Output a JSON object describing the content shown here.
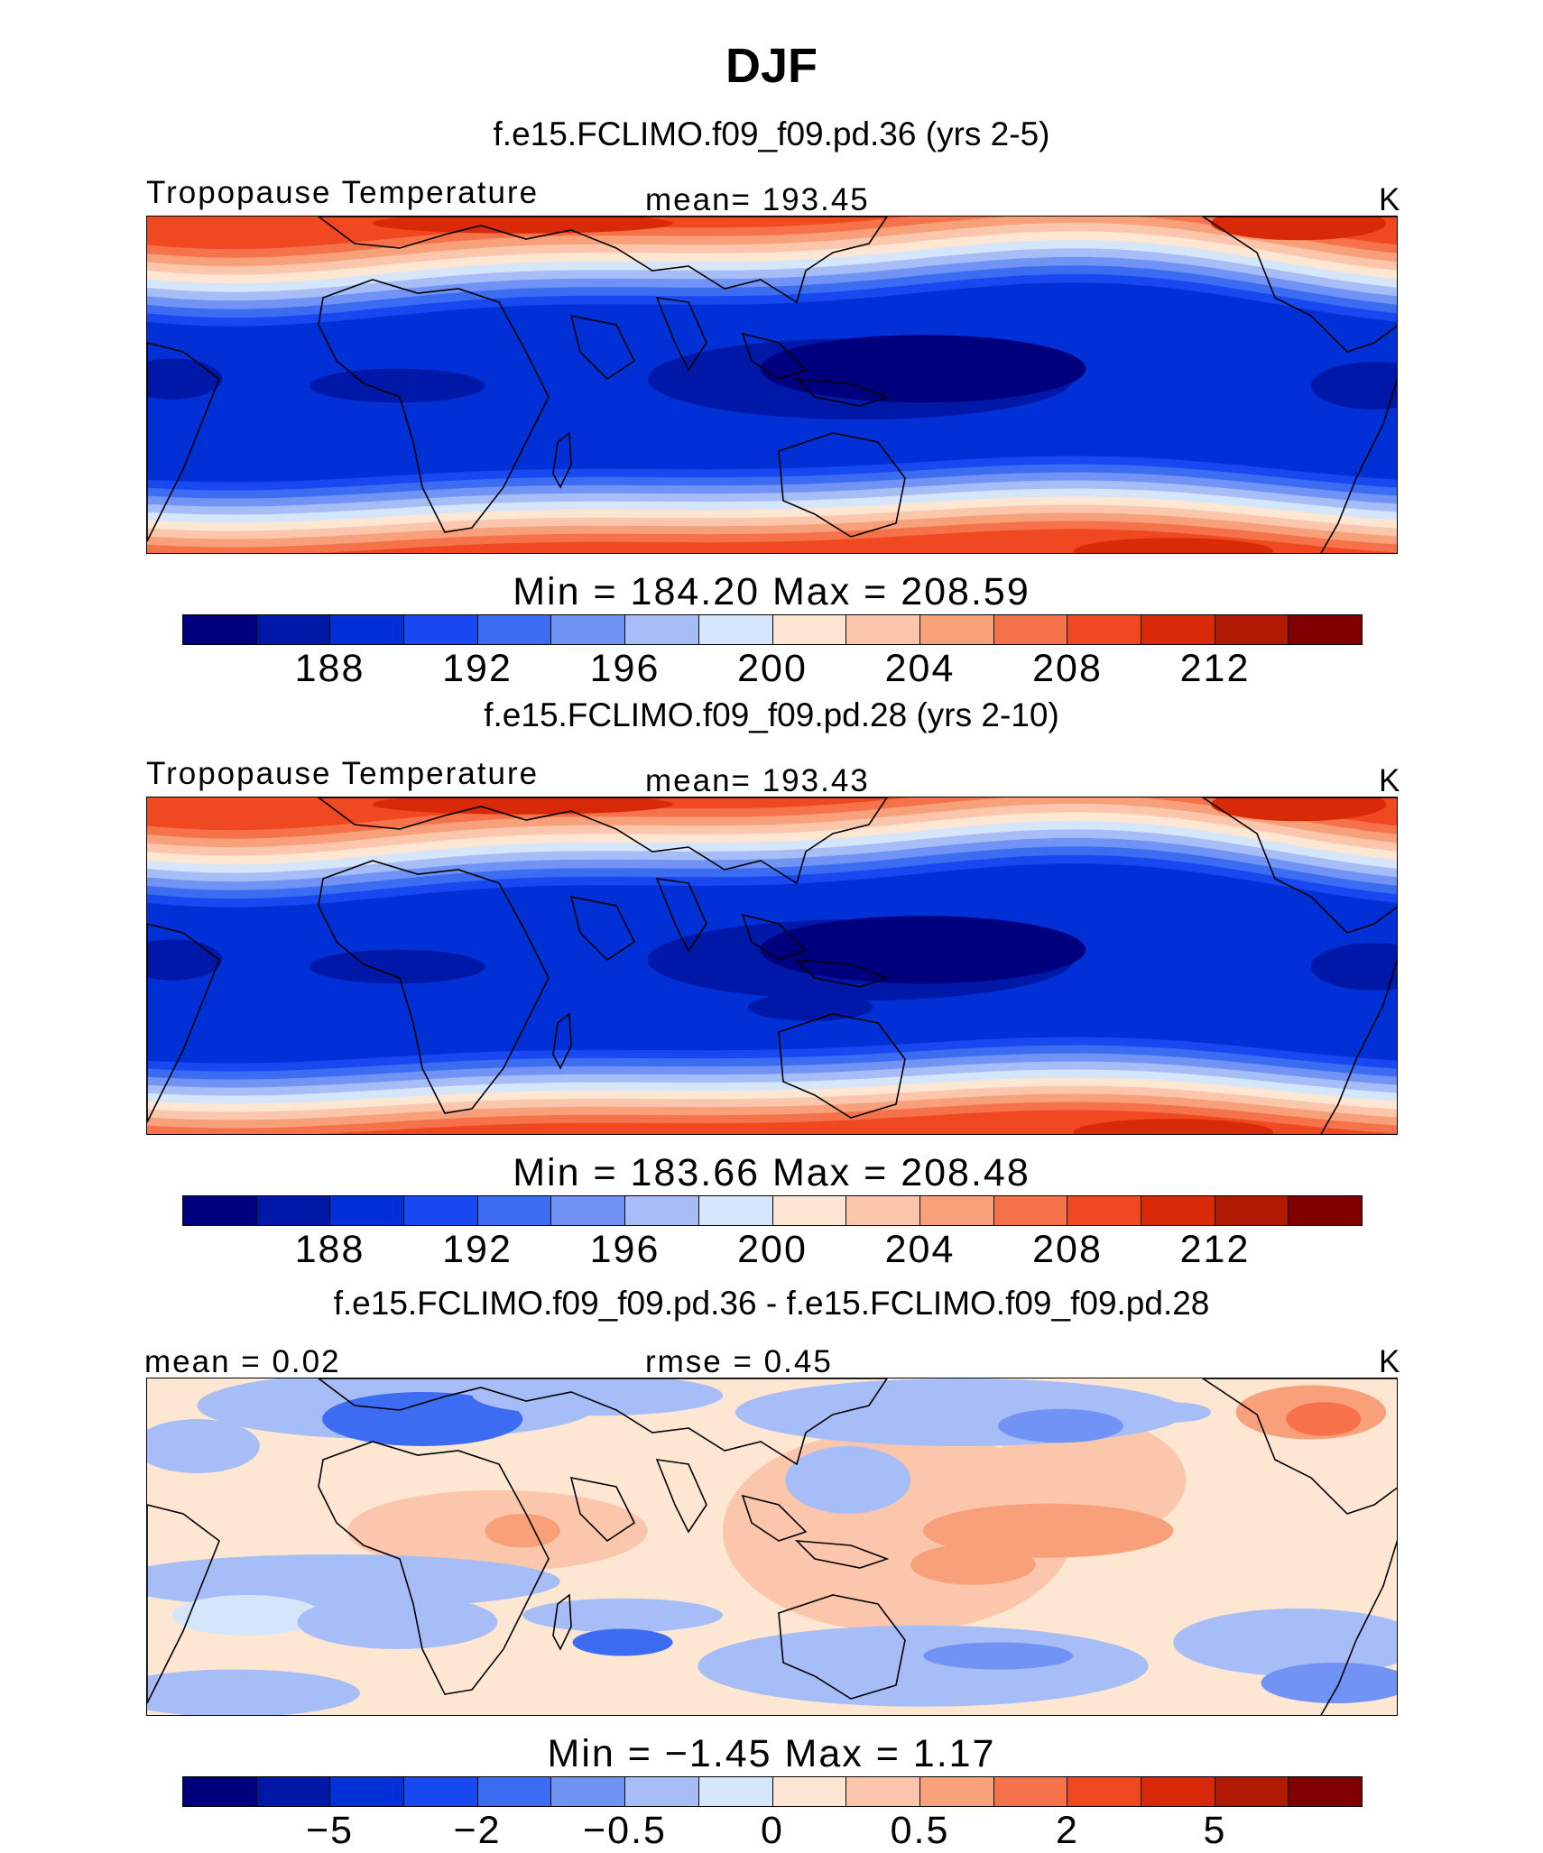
{
  "figure": {
    "title": "DJF"
  },
  "colormaps": {
    "absolute": [
      "#00007f",
      "#0018a8",
      "#0030d6",
      "#1848f0",
      "#3c6cf2",
      "#7093f5",
      "#a6bdf7",
      "#d6e6fa",
      "#fde6d2",
      "#fbc6ac",
      "#f7a07a",
      "#f5724a",
      "#f04820",
      "#d82a08",
      "#b01a00",
      "#800000"
    ],
    "difference": [
      "#00007f",
      "#0018a8",
      "#0030d6",
      "#1848f0",
      "#3c6cf2",
      "#7093f5",
      "#a6bdf7",
      "#d6e6fa",
      "#fde6d2",
      "#fbc6ac",
      "#f7a07a",
      "#f5724a",
      "#f04820",
      "#d82a08",
      "#b01a00",
      "#800000"
    ]
  },
  "chart_data": [
    {
      "type": "contour-map",
      "case_title": "f.e15.FCLIMO.f09_f09.pd.36 (yrs 2-5)",
      "left_label": "Tropopause Temperature",
      "center_label": "mean=  193.45",
      "units": "K",
      "stat_line": "Min  =  184.20  Max  =  208.59",
      "min": 184.2,
      "max": 208.59,
      "mean": 193.45,
      "colorbar_ticks": [
        "188",
        "192",
        "196",
        "200",
        "204",
        "208",
        "212"
      ]
    },
    {
      "type": "contour-map",
      "case_title": "f.e15.FCLIMO.f09_f09.pd.28 (yrs 2-10)",
      "left_label": "Tropopause Temperature",
      "center_label": "mean=  193.43",
      "units": "K",
      "stat_line": "Min  =  183.66  Max  =  208.48",
      "min": 183.66,
      "max": 208.48,
      "mean": 193.43,
      "colorbar_ticks": [
        "188",
        "192",
        "196",
        "200",
        "204",
        "208",
        "212"
      ]
    },
    {
      "type": "contour-map-difference",
      "case_title": "f.e15.FCLIMO.f09_f09.pd.36 - f.e15.FCLIMO.f09_f09.pd.28",
      "left_label": "mean  =     0.02",
      "center_label": "rmse  =     0.45",
      "units": "K",
      "stat_line": "Min  =   −1.45  Max  =     1.17",
      "min": -1.45,
      "max": 1.17,
      "mean": 0.02,
      "rmse": 0.45,
      "colorbar_ticks": [
        "−5",
        "−2",
        "−0.5",
        "0",
        "0.5",
        "2",
        "5"
      ]
    }
  ]
}
